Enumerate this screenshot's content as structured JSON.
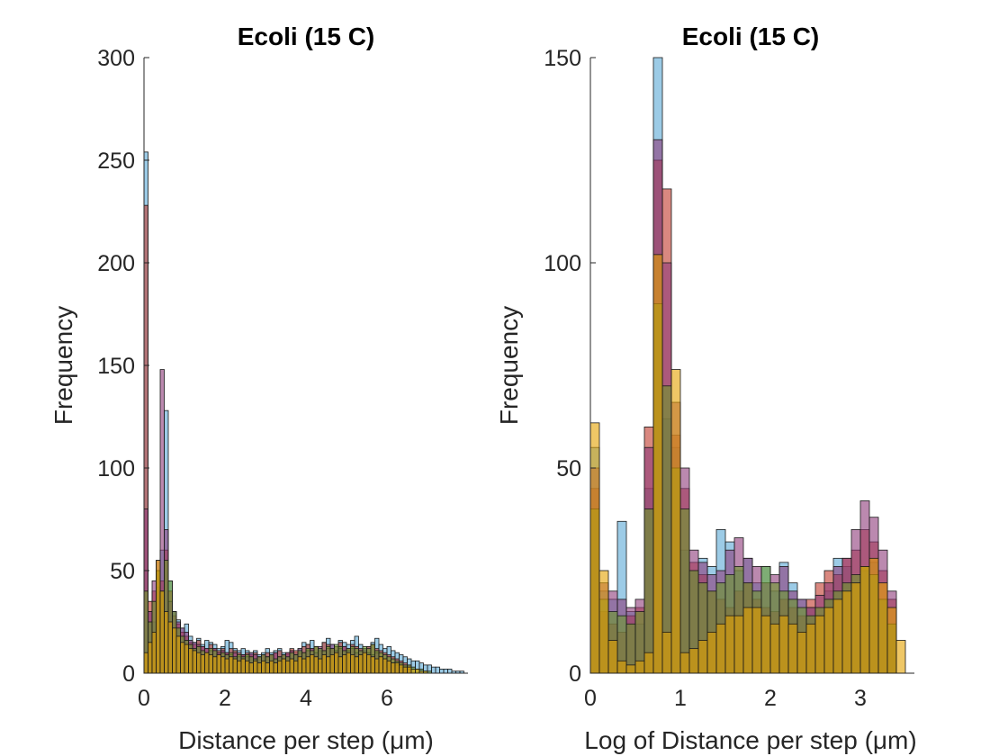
{
  "figure": {
    "background": "#ffffff"
  },
  "chart_data": [
    {
      "type": "bar",
      "title": "Ecoli (15 C)",
      "xlabel": "Distance per step (μm)",
      "ylabel": "Frequency",
      "xlim": [
        0,
        8
      ],
      "ylim": [
        0,
        300
      ],
      "x_ticks": [
        0,
        2,
        4,
        6
      ],
      "y_ticks": [
        0,
        50,
        100,
        150,
        200,
        250,
        300
      ],
      "bin_width": 0.1,
      "grid": false,
      "legend": "none",
      "series": [
        {
          "color": "#5aa9d6",
          "x": [
            0.05,
            0.15,
            0.25,
            0.35,
            0.45,
            0.55,
            0.65,
            0.75,
            0.85,
            0.95,
            1.05,
            1.15,
            1.25,
            1.35,
            1.45,
            1.55,
            1.65,
            1.75,
            1.85,
            1.95,
            2.05,
            2.15,
            2.25,
            2.35,
            2.45,
            2.55,
            2.65,
            2.75,
            2.85,
            2.95,
            3.05,
            3.15,
            3.25,
            3.35,
            3.45,
            3.55,
            3.65,
            3.75,
            3.85,
            3.95,
            4.05,
            4.15,
            4.25,
            4.35,
            4.45,
            4.55,
            4.65,
            4.75,
            4.85,
            4.95,
            5.05,
            5.15,
            5.25,
            5.35,
            5.45,
            5.55,
            5.65,
            5.75,
            5.85,
            5.95,
            6.05,
            6.15,
            6.25,
            6.35,
            6.45,
            6.55,
            6.65,
            6.75,
            6.85,
            6.95,
            7.05,
            7.15,
            7.25,
            7.35,
            7.45,
            7.55,
            7.65,
            7.75,
            7.85
          ],
          "values": [
            254,
            30,
            25,
            42,
            60,
            128,
            45,
            30,
            26,
            22,
            24,
            18,
            15,
            17,
            14,
            16,
            15,
            14,
            12,
            13,
            16,
            15,
            12,
            11,
            12,
            11,
            10,
            11,
            9,
            10,
            12,
            10,
            11,
            12,
            10,
            9,
            11,
            10,
            12,
            15,
            14,
            16,
            13,
            12,
            15,
            17,
            14,
            13,
            16,
            15,
            14,
            16,
            18,
            14,
            12,
            13,
            15,
            17,
            14,
            12,
            13,
            11,
            10,
            9,
            8,
            7,
            6,
            6,
            5,
            4,
            4,
            3,
            3,
            2,
            2,
            2,
            1,
            1,
            1
          ]
        },
        {
          "color": "#c0392b",
          "x": [
            0.05,
            0.15,
            0.25,
            0.35,
            0.45,
            0.55,
            0.65,
            0.75,
            0.85,
            0.95,
            1.05,
            1.15,
            1.25,
            1.35,
            1.45,
            1.55,
            1.65,
            1.75,
            1.85,
            1.95,
            2.05,
            2.15,
            2.25,
            2.35,
            2.45,
            2.55,
            2.65,
            2.75,
            2.85,
            2.95,
            3.05,
            3.15,
            3.25,
            3.35,
            3.45,
            3.55,
            3.65,
            3.75,
            3.85,
            3.95,
            4.05,
            4.15,
            4.25,
            4.35,
            4.45,
            4.55,
            4.65,
            4.75,
            4.85,
            4.95,
            5.05,
            5.15,
            5.25,
            5.35,
            5.45,
            5.55,
            5.65,
            5.75,
            5.85,
            5.95,
            6.05,
            6.15,
            6.25,
            6.35,
            6.45,
            6.55
          ],
          "values": [
            228,
            35,
            40,
            50,
            45,
            60,
            40,
            28,
            24,
            20,
            18,
            15,
            14,
            16,
            13,
            12,
            14,
            12,
            11,
            12,
            10,
            12,
            11,
            10,
            9,
            10,
            9,
            10,
            8,
            9,
            10,
            9,
            10,
            11,
            9,
            10,
            12,
            11,
            10,
            13,
            14,
            12,
            13,
            11,
            15,
            14,
            12,
            13,
            15,
            13,
            12,
            14,
            13,
            12,
            11,
            13,
            14,
            12,
            11,
            10,
            9,
            8,
            7,
            6,
            5,
            4
          ]
        },
        {
          "color": "#8e3a7a",
          "x": [
            0.05,
            0.15,
            0.25,
            0.35,
            0.45,
            0.55,
            0.65,
            0.75,
            0.85,
            0.95,
            1.05,
            1.15,
            1.25,
            1.35,
            1.45,
            1.55,
            1.65,
            1.75,
            1.85,
            1.95,
            2.05,
            2.15,
            2.25,
            2.35,
            2.45,
            2.55,
            2.65,
            2.75,
            2.85,
            2.95,
            3.05,
            3.15,
            3.25,
            3.35,
            3.45,
            3.55,
            3.65,
            3.75,
            3.85,
            3.95,
            4.05,
            4.15,
            4.25,
            4.35,
            4.45,
            4.55,
            4.65,
            4.75,
            4.85,
            4.95,
            5.05,
            5.15,
            5.25,
            5.35,
            5.45,
            5.55,
            5.65,
            5.75,
            5.85,
            5.95,
            6.05,
            6.15,
            6.25,
            6.35,
            6.45,
            6.55
          ],
          "values": [
            80,
            30,
            45,
            55,
            148,
            70,
            35,
            30,
            25,
            22,
            20,
            16,
            15,
            14,
            13,
            12,
            11,
            12,
            10,
            11,
            10,
            9,
            10,
            8,
            9,
            8,
            10,
            9,
            8,
            9,
            8,
            9,
            10,
            8,
            9,
            10,
            11,
            9,
            12,
            10,
            11,
            12,
            10,
            13,
            11,
            12,
            14,
            11,
            12,
            13,
            11,
            12,
            10,
            11,
            12,
            10,
            9,
            10,
            8,
            7,
            6,
            5,
            4,
            3,
            3,
            2
          ]
        },
        {
          "color": "#6a9a2a",
          "x": [
            0.05,
            0.15,
            0.25,
            0.35,
            0.45,
            0.55,
            0.65,
            0.75,
            0.85,
            0.95,
            1.05,
            1.15,
            1.25,
            1.35,
            1.45,
            1.55,
            1.65,
            1.75,
            1.85,
            1.95,
            2.05,
            2.15,
            2.25,
            2.35,
            2.45,
            2.55,
            2.65,
            2.75,
            2.85,
            2.95,
            3.05,
            3.15,
            3.25,
            3.35,
            3.45,
            3.55,
            3.65,
            3.75,
            3.85,
            3.95,
            4.05,
            4.15,
            4.25,
            4.35,
            4.45,
            4.55,
            4.65,
            4.75,
            4.85,
            4.95,
            5.05,
            5.15,
            5.25,
            5.35,
            5.45,
            5.55,
            5.65,
            5.75,
            5.85,
            5.95,
            6.05,
            6.15,
            6.25,
            6.35,
            6.45,
            6.55,
            6.65,
            6.75,
            6.85,
            6.95,
            7.05
          ],
          "values": [
            40,
            25,
            35,
            50,
            40,
            55,
            45,
            30,
            22,
            18,
            16,
            14,
            12,
            13,
            11,
            10,
            12,
            11,
            9,
            10,
            9,
            10,
            8,
            9,
            8,
            9,
            8,
            7,
            8,
            9,
            8,
            9,
            7,
            8,
            9,
            8,
            10,
            9,
            11,
            10,
            12,
            11,
            13,
            12,
            11,
            13,
            12,
            14,
            13,
            11,
            12,
            13,
            12,
            11,
            13,
            12,
            14,
            11,
            10,
            9,
            8,
            7,
            6,
            5,
            4,
            4,
            3,
            2,
            2,
            1,
            1
          ]
        },
        {
          "color": "#e5a200",
          "x": [
            0.05,
            0.15,
            0.25,
            0.35,
            0.45,
            0.55,
            0.65,
            0.75,
            0.85,
            0.95,
            1.05,
            1.15,
            1.25,
            1.35,
            1.45,
            1.55,
            1.65,
            1.75,
            1.85,
            1.95,
            2.05,
            2.15,
            2.25,
            2.35,
            2.45,
            2.55,
            2.65,
            2.75,
            2.85,
            2.95,
            3.05,
            3.15,
            3.25,
            3.35,
            3.45,
            3.55,
            3.65,
            3.75,
            3.85,
            3.95,
            4.05,
            4.15,
            4.25,
            4.35,
            4.45,
            4.55,
            4.65,
            4.75,
            4.85,
            4.95,
            5.05,
            5.15,
            5.25,
            5.35,
            5.45,
            5.55,
            5.65,
            5.75,
            5.85,
            5.95,
            6.05,
            6.15,
            6.25,
            6.35,
            6.45,
            6.55,
            6.65,
            6.75,
            6.85,
            6.95
          ],
          "values": [
            10,
            15,
            20,
            55,
            40,
            30,
            25,
            22,
            18,
            15,
            14,
            12,
            11,
            10,
            9,
            10,
            9,
            8,
            9,
            8,
            7,
            8,
            7,
            6,
            7,
            6,
            5,
            6,
            5,
            6,
            5,
            6,
            5,
            6,
            7,
            6,
            7,
            6,
            8,
            7,
            8,
            9,
            8,
            7,
            9,
            8,
            9,
            10,
            8,
            9,
            10,
            9,
            8,
            9,
            10,
            9,
            8,
            7,
            8,
            7,
            6,
            5,
            5,
            4,
            3,
            3,
            2,
            2,
            1,
            1
          ]
        }
      ]
    },
    {
      "type": "bar",
      "title": "Ecoli (15 C)",
      "xlabel": "Log of Distance per step (μm)",
      "ylabel": "Frequency",
      "xlim": [
        0,
        3.6
      ],
      "ylim": [
        0,
        150
      ],
      "x_ticks": [
        0,
        1,
        2,
        3
      ],
      "y_ticks": [
        0,
        50,
        100,
        150
      ],
      "bin_width": 0.1,
      "grid": false,
      "legend": "none",
      "series": [
        {
          "color": "#5aa9d6",
          "x": [
            0.05,
            0.15,
            0.25,
            0.35,
            0.45,
            0.55,
            0.65,
            0.75,
            0.85,
            0.95,
            1.05,
            1.15,
            1.25,
            1.35,
            1.45,
            1.55,
            1.65,
            1.75,
            1.85,
            1.95,
            2.05,
            2.15,
            2.25,
            2.35,
            2.45,
            2.55,
            2.65,
            2.75,
            2.85,
            2.95,
            3.05,
            3.15,
            3.25,
            3.35
          ],
          "values": [
            55,
            20,
            18,
            37,
            15,
            12,
            45,
            150,
            62,
            55,
            30,
            25,
            28,
            26,
            35,
            32,
            25,
            28,
            22,
            26,
            20,
            27,
            22,
            18,
            16,
            14,
            20,
            28,
            26,
            22,
            25,
            27,
            18,
            12
          ]
        },
        {
          "color": "#c0392b",
          "x": [
            0.05,
            0.15,
            0.25,
            0.35,
            0.45,
            0.55,
            0.65,
            0.75,
            0.85,
            0.95,
            1.05,
            1.15,
            1.25,
            1.35,
            1.45,
            1.55,
            1.65,
            1.75,
            1.85,
            1.95,
            2.05,
            2.15,
            2.25,
            2.35,
            2.45,
            2.55,
            2.65,
            2.75,
            2.85,
            2.95,
            3.05,
            3.15,
            3.25,
            3.35
          ],
          "values": [
            45,
            15,
            12,
            10,
            14,
            16,
            60,
            125,
            118,
            58,
            45,
            27,
            24,
            20,
            18,
            16,
            20,
            22,
            18,
            16,
            15,
            18,
            16,
            14,
            18,
            22,
            25,
            24,
            28,
            30,
            35,
            32,
            25,
            18
          ]
        },
        {
          "color": "#8e3a7a",
          "x": [
            0.05,
            0.15,
            0.25,
            0.35,
            0.45,
            0.55,
            0.65,
            0.75,
            0.85,
            0.95,
            1.05,
            1.15,
            1.25,
            1.35,
            1.45,
            1.55,
            1.65,
            1.75,
            1.85,
            1.95,
            2.05,
            2.15,
            2.25,
            2.35,
            2.45,
            2.55,
            2.65,
            2.75,
            2.85,
            2.95,
            3.05,
            3.15,
            3.25,
            3.35
          ],
          "values": [
            50,
            22,
            20,
            18,
            16,
            18,
            55,
            130,
            100,
            66,
            50,
            30,
            27,
            24,
            25,
            30,
            33,
            28,
            26,
            22,
            24,
            26,
            20,
            18,
            16,
            19,
            22,
            26,
            28,
            35,
            42,
            38,
            30,
            20
          ]
        },
        {
          "color": "#6a9a2a",
          "x": [
            0.05,
            0.15,
            0.25,
            0.35,
            0.45,
            0.55,
            0.65,
            0.75,
            0.85,
            0.95,
            1.05,
            1.15,
            1.25,
            1.35,
            1.45,
            1.55,
            1.65,
            1.75,
            1.85,
            1.95,
            2.05,
            2.15,
            2.25,
            2.35,
            2.45,
            2.55,
            2.65,
            2.75,
            2.85,
            2.95,
            3.05,
            3.15,
            3.25,
            3.35
          ],
          "values": [
            40,
            18,
            15,
            14,
            12,
            15,
            40,
            90,
            70,
            50,
            40,
            25,
            22,
            20,
            22,
            24,
            26,
            22,
            20,
            26,
            22,
            20,
            18,
            16,
            14,
            16,
            18,
            20,
            22,
            24,
            26,
            24,
            18,
            12
          ]
        },
        {
          "color": "#e5a200",
          "x": [
            0.05,
            0.15,
            0.25,
            0.35,
            0.45,
            0.55,
            0.65,
            0.75,
            0.85,
            0.95,
            1.05,
            1.15,
            1.25,
            1.35,
            1.45,
            1.55,
            1.65,
            1.75,
            1.85,
            1.95,
            2.05,
            2.15,
            2.25,
            2.35,
            2.45,
            2.55,
            2.65,
            2.75,
            2.85,
            2.95,
            3.05,
            3.15,
            3.25,
            3.35,
            3.45
          ],
          "values": [
            61,
            25,
            8,
            3,
            2,
            3,
            5,
            102,
            10,
            74,
            5,
            6,
            8,
            10,
            12,
            14,
            14,
            16,
            16,
            14,
            12,
            14,
            12,
            10,
            12,
            14,
            16,
            18,
            20,
            22,
            26,
            28,
            22,
            16,
            8
          ]
        }
      ]
    }
  ]
}
